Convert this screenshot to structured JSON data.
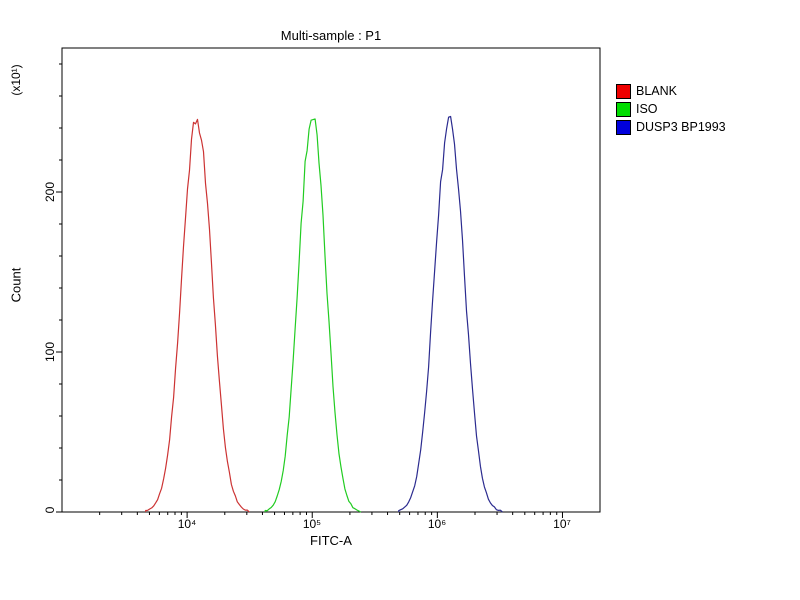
{
  "title": "Multi-sample : P1",
  "axes": {
    "x_label": "FITC-A",
    "y_label": "Count",
    "y_unit": "(x10¹)",
    "x_ticks": [
      "10⁴",
      "10⁵",
      "10⁶",
      "10⁷"
    ],
    "y_ticks": [
      "0",
      "100",
      "200"
    ]
  },
  "legend": [
    {
      "label": "BLANK",
      "color": "#ee0000"
    },
    {
      "label": "ISO",
      "color": "#00dd00"
    },
    {
      "label": "DUSP3 BP1993",
      "color": "#0000dd"
    }
  ],
  "chart_data": {
    "type": "line",
    "title": "Multi-sample : P1",
    "xlabel": "FITC-A",
    "ylabel": "Count (x10^1)",
    "x_scale": "log",
    "xlim_log10": [
      3.0,
      7.3
    ],
    "ylim": [
      0,
      290
    ],
    "y_major_ticks": [
      0,
      100,
      200
    ],
    "y_minor_step": 20,
    "x_major_tick_exponents": [
      4,
      5,
      6,
      7
    ],
    "grid": false,
    "legend_position": "right-outside",
    "series": [
      {
        "name": "BLANK",
        "color": "#cc3333",
        "peak_x": 12000,
        "peak_y": 245,
        "sigma_log10": 0.12
      },
      {
        "name": "ISO",
        "color": "#22cc22",
        "peak_x": 100000,
        "peak_y": 247,
        "sigma_log10": 0.11
      },
      {
        "name": "DUSP3 BP1993",
        "color": "#2b2b8f",
        "peak_x": 1250000,
        "peak_y": 243,
        "sigma_log10": 0.12
      }
    ]
  }
}
